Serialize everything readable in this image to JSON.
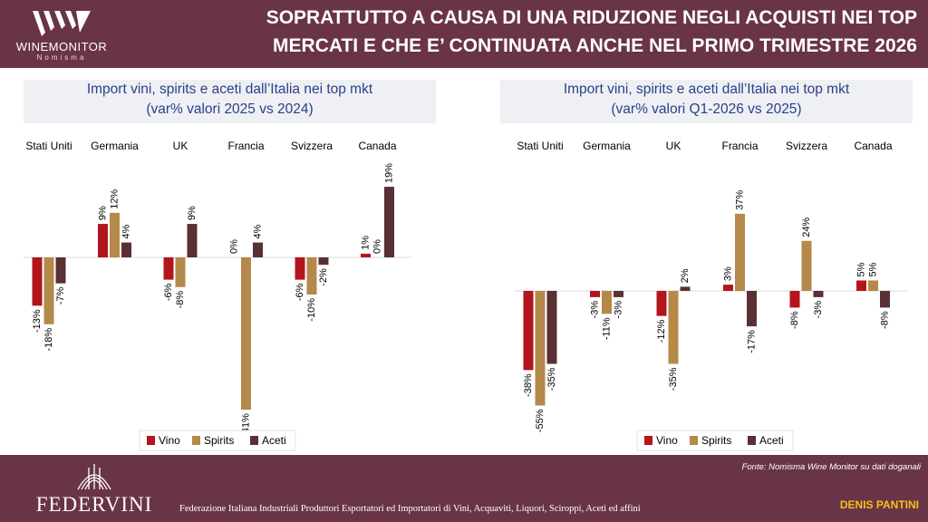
{
  "header": {
    "logo_text": "WINEMONITOR",
    "logo_subtext": "Nomisma",
    "title_line1": "SOPRATTUTTO A CAUSA DI UNA RIDUZIONE NEGLI ACQUISTI NEI TOP",
    "title_line2": "MERCATI E CHE E’ CONTINUATA ANCHE NEL PRIMO TRIMESTRE 2026"
  },
  "colors": {
    "vino": "#b3151d",
    "spirits": "#b5894a",
    "aceti": "#5a3035",
    "header_bg": "#6a3447",
    "title_text": "#2b3f8c"
  },
  "chart_data": [
    {
      "type": "bar",
      "title": "Import vini, spirits e aceti dall’Italia nei top mkt",
      "subtitle": "(var% valori 2025 vs 2024)",
      "categories": [
        "Stati Uniti",
        "Germania",
        "UK",
        "Francia",
        "Svizzera",
        "Canada"
      ],
      "series": [
        {
          "name": "Vino",
          "values": [
            -13,
            9,
            -6,
            0,
            -6,
            1
          ],
          "labels": [
            "-13%",
            "9%",
            "-6%",
            "0%",
            "-6%",
            "1%"
          ]
        },
        {
          "name": "Spirits",
          "values": [
            -18,
            12,
            -8,
            -41,
            -10,
            0
          ],
          "labels": [
            "-18%",
            "12%",
            "-8%",
            "-41%",
            "-10%",
            "0%"
          ]
        },
        {
          "name": "Aceti",
          "values": [
            -7,
            4,
            9,
            4,
            -2,
            19
          ],
          "labels": [
            "-7%",
            "4%",
            "9%",
            "4%",
            "-2%",
            "19%"
          ]
        }
      ],
      "ylim": [
        -41,
        19
      ],
      "legend": "bottom"
    },
    {
      "type": "bar",
      "title": "Import vini, spirits e aceti dall’Italia nei top mkt",
      "subtitle": "(var% valori Q1-2026 vs 2025)",
      "categories": [
        "Stati Uniti",
        "Germania",
        "UK",
        "Francia",
        "Svizzera",
        "Canada"
      ],
      "series": [
        {
          "name": "Vino",
          "values": [
            -38,
            -3,
            -12,
            3,
            -8,
            5
          ],
          "labels": [
            "-38%",
            "-3%",
            "-12%",
            "3%",
            "-8%",
            "5%"
          ]
        },
        {
          "name": "Spirits",
          "values": [
            -55,
            -11,
            -35,
            37,
            24,
            5
          ],
          "labels": [
            "-55%",
            "-11%",
            "-35%",
            "37%",
            "24%",
            "5%"
          ]
        },
        {
          "name": "Aceti",
          "values": [
            -35,
            -3,
            2,
            -17,
            -3,
            -8
          ],
          "labels": [
            "-35%",
            "-3%",
            "2%",
            "-17%",
            "-3%",
            "-8%"
          ]
        }
      ],
      "ylim": [
        -55,
        37
      ],
      "legend": "bottom"
    }
  ],
  "footer": {
    "source": "Fonte: Nomisma Wine Monitor su dati doganali",
    "org_name": "FEDERVINI",
    "org_description": "Federazione Italiana Industriali Produttori Esportatori ed Importatori di Vini, Acquaviti, Liquori, Sciroppi, Aceti ed affini",
    "author": "DENIS PANTINI"
  }
}
